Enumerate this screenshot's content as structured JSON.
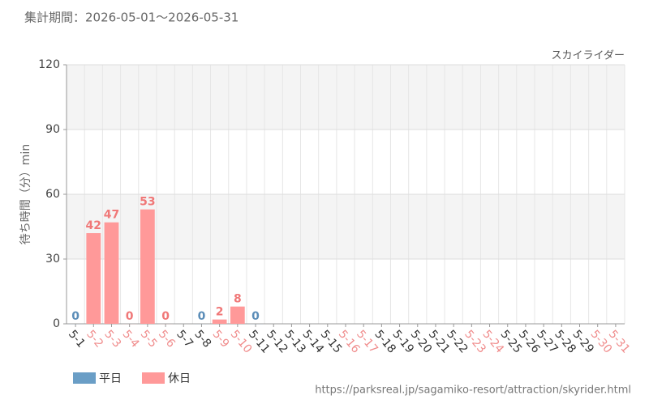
{
  "chart_data": {
    "type": "bar",
    "title": "集計期間：2026-05-01～2026-05-31",
    "subtitle": "スカイライダー",
    "ylabel": "待ち時間（分）min",
    "source": "https://parksreal.jp/sagamiko-resort/attraction/skyrider.html",
    "categories": [
      "5-1",
      "5-2",
      "5-3",
      "5-4",
      "5-5",
      "5-6",
      "5-7",
      "5-8",
      "5-9",
      "5-10",
      "5-11",
      "5-12",
      "5-13",
      "5-14",
      "5-15",
      "5-16",
      "5-17",
      "5-18",
      "5-19",
      "5-20",
      "5-21",
      "5-22",
      "5-23",
      "5-24",
      "5-25",
      "5-26",
      "5-27",
      "5-28",
      "5-29",
      "5-30",
      "5-31"
    ],
    "category_colors": [
      "#333",
      "#f08c8c",
      "#f08c8c",
      "#f08c8c",
      "#f08c8c",
      "#f08c8c",
      "#333",
      "#333",
      "#f08c8c",
      "#f08c8c",
      "#333",
      "#333",
      "#333",
      "#333",
      "#333",
      "#f08c8c",
      "#f08c8c",
      "#333",
      "#333",
      "#333",
      "#333",
      "#333",
      "#f08c8c",
      "#f08c8c",
      "#333",
      "#333",
      "#333",
      "#333",
      "#333",
      "#f08c8c",
      "#f08c8c"
    ],
    "series": [
      {
        "name": "平日",
        "color": "#6a9ec6",
        "label_color": "#5b8db8",
        "values": [
          0,
          null,
          null,
          null,
          null,
          null,
          null,
          0,
          null,
          null,
          0,
          null,
          null,
          null,
          null,
          null,
          null,
          null,
          null,
          null,
          null,
          null,
          null,
          null,
          null,
          null,
          null,
          null,
          null,
          null,
          null
        ]
      },
      {
        "name": "休日",
        "color": "#ff9999",
        "label_color": "#f07878",
        "values": [
          null,
          42,
          47,
          0,
          53,
          0,
          null,
          null,
          2,
          8,
          null,
          null,
          null,
          null,
          null,
          null,
          null,
          null,
          null,
          null,
          null,
          null,
          null,
          null,
          null,
          null,
          null,
          null,
          null,
          null,
          null
        ]
      }
    ],
    "ylim": [
      0,
      120
    ],
    "yticks": [
      0,
      30,
      60,
      90,
      120
    ],
    "grid": true
  }
}
